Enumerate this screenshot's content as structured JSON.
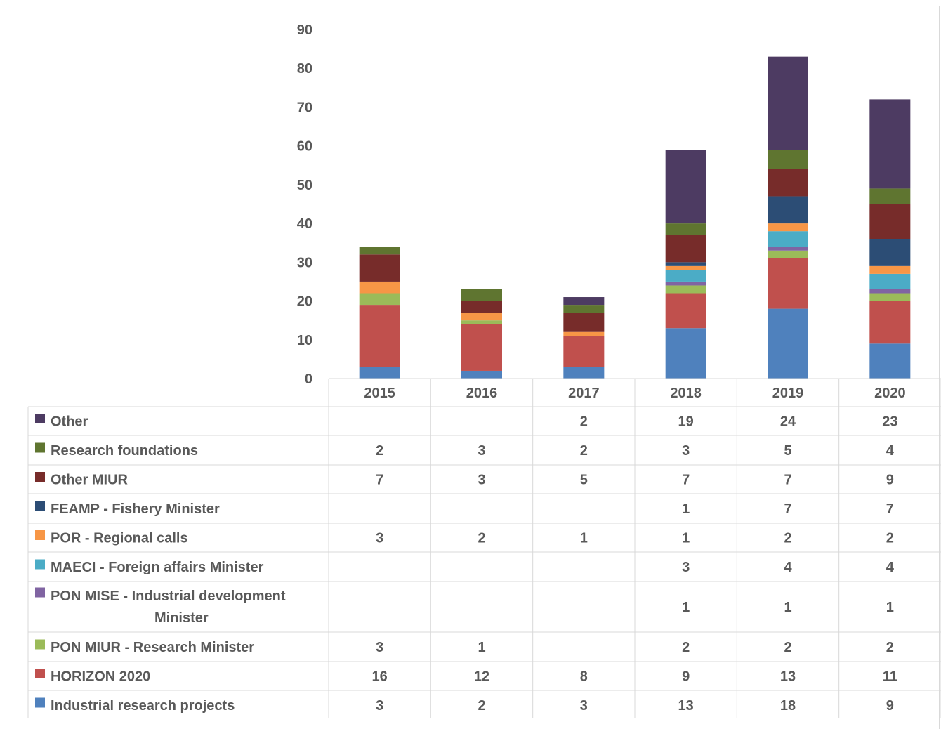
{
  "chart_data": {
    "type": "bar",
    "stacked": true,
    "categories": [
      "2015",
      "2016",
      "2017",
      "2018",
      "2019",
      "2020"
    ],
    "ylim": [
      0,
      90
    ],
    "yticks": [
      0,
      10,
      20,
      30,
      40,
      50,
      60,
      70,
      80,
      90
    ],
    "grid": false,
    "legend": "data-table-below",
    "series": [
      {
        "name": "Industrial research projects",
        "color": "#4f81bd",
        "values": [
          3,
          2,
          3,
          13,
          18,
          9
        ]
      },
      {
        "name": "HORIZON 2020",
        "color": "#c0504d",
        "values": [
          16,
          12,
          8,
          9,
          13,
          11
        ]
      },
      {
        "name": "PON MIUR - Research Minister",
        "color": "#9bbb59",
        "values": [
          3,
          1,
          null,
          2,
          2,
          2
        ]
      },
      {
        "name": "PON MISE - Industrial development Minister",
        "color": "#8064a2",
        "values": [
          null,
          null,
          null,
          1,
          1,
          1
        ]
      },
      {
        "name": "MAECI - Foreign affairs Minister",
        "color": "#4bacc6",
        "values": [
          null,
          null,
          null,
          3,
          4,
          4
        ]
      },
      {
        "name": "POR - Regional calls",
        "color": "#f79646",
        "values": [
          3,
          2,
          1,
          1,
          2,
          2
        ]
      },
      {
        "name": "FEAMP - Fishery Minister",
        "color": "#2c4d75",
        "values": [
          null,
          null,
          null,
          1,
          7,
          7
        ]
      },
      {
        "name": "Other MIUR",
        "color": "#772c2a",
        "values": [
          7,
          3,
          5,
          7,
          7,
          9
        ]
      },
      {
        "name": "Research foundations",
        "color": "#5f7530",
        "values": [
          2,
          3,
          2,
          3,
          5,
          4
        ]
      },
      {
        "name": "Other",
        "color": "#4d3b62",
        "values": [
          null,
          null,
          2,
          19,
          24,
          23
        ]
      }
    ]
  }
}
